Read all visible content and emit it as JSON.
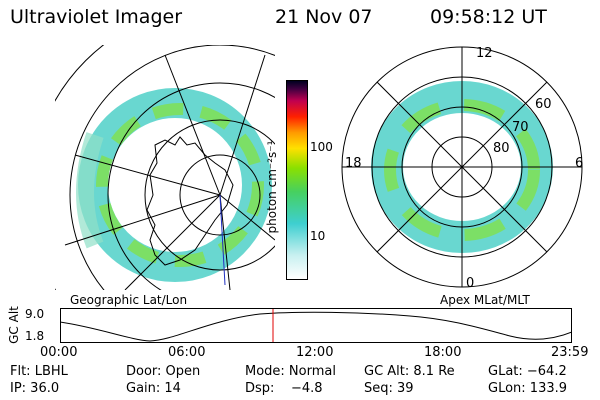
{
  "header": {
    "title": "Ultraviolet Imager",
    "date": "21 Nov 07",
    "time": "09:58:12 UT"
  },
  "colorbar": {
    "unit_label": "photon cm⁻²s⁻¹",
    "tick_100": "100",
    "tick_10": "10"
  },
  "left_map": {
    "label": "Geographic Lat/Lon"
  },
  "right_map": {
    "label": "Apex MLat/MLT",
    "mlt_12": "12",
    "mlt_18": "18",
    "mlt_6": "6",
    "mlt_0": "0",
    "lat_60": "60",
    "lat_70": "70",
    "lat_80": "80"
  },
  "altitude_plot": {
    "ylabel": "GC Alt",
    "ymax": "9.0",
    "ymin": "1.8",
    "time_ticks": [
      "00:00",
      "06:00",
      "12:00",
      "18:00",
      "23:59"
    ],
    "current_time_fraction": 0.416
  },
  "status": {
    "filter": "Flt: LBHL",
    "door": "Door: Open",
    "mode": "Mode: Normal",
    "gc_alt": "GC Alt: 8.1 Re",
    "glat": "GLat: −64.2",
    "ip": "IP: 36.0",
    "gain": "Gain: 14",
    "dsp": "Dsp:    −4.8",
    "seq": "Seq: 39",
    "glon": "GLon: 133.9"
  },
  "colors": {
    "line": "#000000",
    "marker": "#e00000"
  }
}
